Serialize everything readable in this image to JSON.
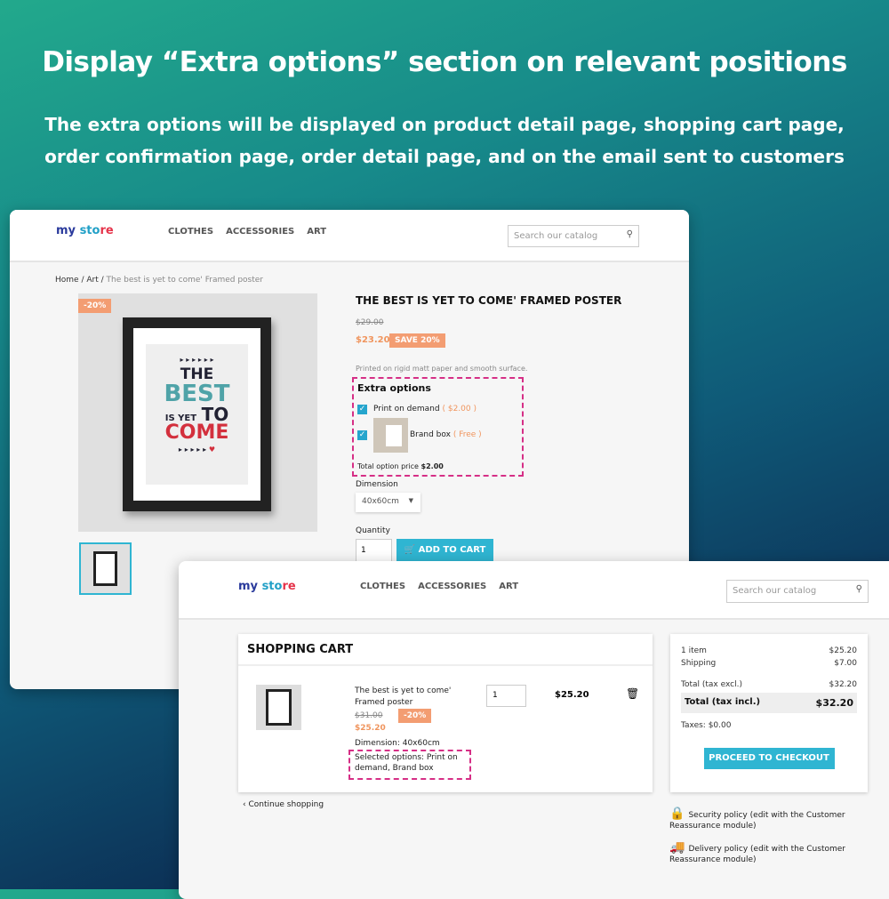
{
  "hero": {
    "title": "Display “Extra options” section on relevant positions",
    "subtitle_line1": "The extra options will be displayed on product detail page, shopping cart page,",
    "subtitle_line2": "order confirmation page, order detail page, and on the email sent to customers"
  },
  "store": {
    "logo": "my store",
    "nav": [
      "CLOTHES",
      "ACCESSORIES",
      "ART"
    ],
    "search_placeholder": "Search our catalog"
  },
  "product": {
    "breadcrumb": [
      "Home",
      "Art",
      "The best is yet to come' Framed poster"
    ],
    "discount_flag": "-20%",
    "title": "THE BEST IS YET TO COME' FRAMED POSTER",
    "old_price": "$29.00",
    "price": "$23.20",
    "save": "SAVE 20%",
    "description": "Printed on rigid matt paper and smooth surface.",
    "extra_options": {
      "heading": "Extra options",
      "options": [
        {
          "label": "Print on demand",
          "price": "$2.00",
          "checked": true
        },
        {
          "label": "Brand box",
          "price": "Free",
          "checked": true
        }
      ],
      "total_label": "Total option price",
      "total": "$2.00"
    },
    "dimension_label": "Dimension",
    "dimension": "40x60cm",
    "quantity_label": "Quantity",
    "quantity": "1",
    "add_to_cart": "ADD TO CART",
    "poster_text": [
      "THE",
      "BEST",
      "IS YET",
      "TO",
      "COME"
    ]
  },
  "cart": {
    "title": "SHOPPING CART",
    "item": {
      "name_line1": "The best is yet to come'",
      "name_line2": "Framed poster",
      "old_price": "$31.00",
      "discount": "-20%",
      "price": "$25.20",
      "dimension": "Dimension: 40x60cm",
      "selected_options": "Selected options: Print on demand, Brand box",
      "quantity": "1",
      "total": "$25.20"
    },
    "continue": "Continue shopping",
    "summary": {
      "items_label": "1 item",
      "items_value": "$25.20",
      "shipping_label": "Shipping",
      "shipping_value": "$7.00",
      "excl_label": "Total (tax excl.)",
      "excl_value": "$32.20",
      "incl_label": "Total (tax incl.)",
      "incl_value": "$32.20",
      "taxes": "Taxes: $0.00",
      "checkout": "PROCEED TO CHECKOUT"
    },
    "reassurance": [
      {
        "title": "Security policy",
        "text": "(edit with the Customer Reassurance module)"
      },
      {
        "title": "Delivery policy",
        "text": "(edit with the Customer Reassurance module)"
      }
    ]
  },
  "colors": {
    "accent": "#2fb5d2",
    "discount": "#f39d72",
    "highlight": "#d62f86"
  }
}
